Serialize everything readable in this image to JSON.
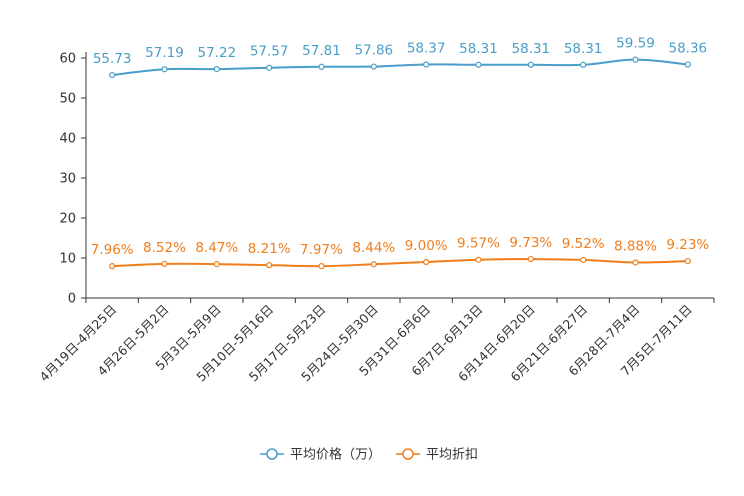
{
  "chart_data": {
    "type": "line",
    "title": "",
    "xlabel": "",
    "ylabel": "",
    "ylim": [
      0,
      60
    ],
    "yticks": [
      0,
      10,
      20,
      30,
      40,
      50,
      60
    ],
    "categories": [
      "4月19日-4月25日",
      "4月26日-5月2日",
      "5月3日-5月9日",
      "5月10日-5月16日",
      "5月17日-5月23日",
      "5月24日-5月30日",
      "5月31日-6月6日",
      "6月7日-6月13日",
      "6月14日-6月20日",
      "6月21日-6月27日",
      "6月28日-7月4日",
      "7月5日-7月11日"
    ],
    "series": [
      {
        "name": "平均价格（万）",
        "color": "#4a9ec9",
        "values": [
          55.73,
          57.19,
          57.22,
          57.57,
          57.81,
          57.86,
          58.37,
          58.31,
          58.31,
          58.31,
          59.59,
          58.36
        ],
        "labels": [
          "55.73",
          "57.19",
          "57.22",
          "57.57",
          "57.81",
          "57.86",
          "58.37",
          "58.31",
          "58.31",
          "58.31",
          "59.59",
          "58.36"
        ]
      },
      {
        "name": "平均折扣",
        "color": "#f07e1c",
        "values": [
          7.96,
          8.52,
          8.47,
          8.21,
          7.97,
          8.44,
          9.0,
          9.57,
          9.73,
          9.52,
          8.88,
          9.23
        ],
        "labels": [
          "7.96%",
          "8.52%",
          "8.47%",
          "8.21%",
          "7.97%",
          "8.44%",
          "9.00%",
          "9.57%",
          "9.73%",
          "9.52%",
          "8.88%",
          "9.23%"
        ]
      }
    ],
    "legend_position": "bottom-center"
  }
}
